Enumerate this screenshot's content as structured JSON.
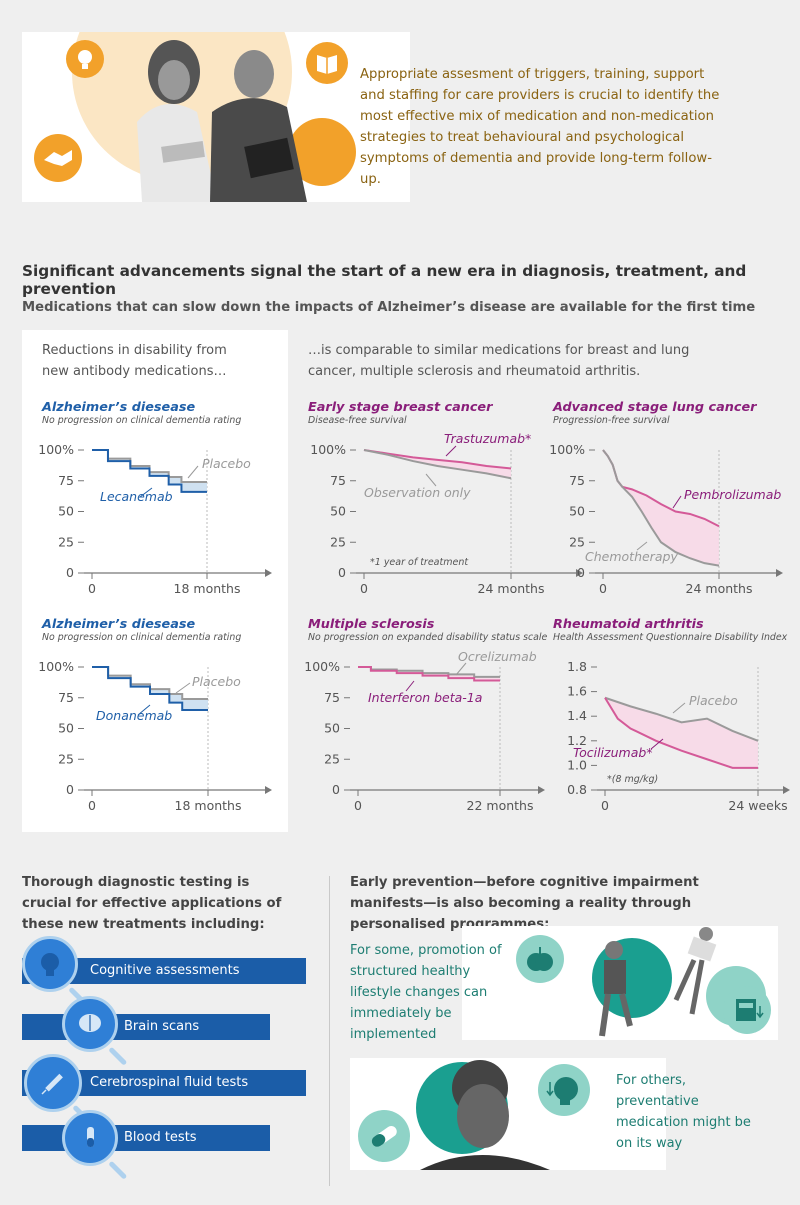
{
  "intro": {
    "text": "Appropriate assesment of triggers, training, support and staffing for care providers is crucial to identify the most effective mix of medication and non-medication strategies to treat behavioural and psychological symptoms of dementia and provide long-term follow-up."
  },
  "heading": "Significant advancements signal the start of a new era in diagnosis, treatment, and prevention",
  "subheading": "Medications that can slow down the impacts of  Alzheimer’s disease are available for the first time",
  "left_lead": "Reductions in disability from new antibody medications…",
  "right_lead": "…is comparable to similar medications for breast and lung cancer, multiple sclerosis and rheumatoid arthritis.",
  "colors": {
    "blue": "#1f5fa8",
    "purple": "#8a1e7a",
    "pink": "#d45a98",
    "pink_fill": "#f8d7e6",
    "blue_fill": "#c7dcee",
    "grey": "#9a9a9a",
    "orange": "#f2a12a",
    "teal": "#1d7d72",
    "teal_light": "#8fd3c7"
  },
  "chart_data": [
    {
      "type": "line",
      "title": "Alzheimer’s diesease",
      "subtitle": "No progression on clinical dementia rating",
      "y_ticks": [
        "100%",
        "75",
        "50",
        "25",
        "0"
      ],
      "x_ticks": [
        "0",
        "18 months"
      ],
      "xlim": [
        0,
        18
      ],
      "ylim": [
        0,
        100
      ],
      "series": [
        {
          "name": "Placebo",
          "x": [
            0,
            2.5,
            2.5,
            6,
            6,
            9,
            9,
            12,
            12,
            14,
            14,
            18
          ],
          "y": [
            100,
            100,
            93,
            93,
            87,
            87,
            82,
            82,
            78,
            78,
            74,
            74
          ]
        },
        {
          "name": "Lecanemab",
          "x": [
            0,
            2.5,
            2.5,
            6,
            6,
            9,
            9,
            12,
            12,
            14,
            14,
            18
          ],
          "y": [
            100,
            100,
            91,
            91,
            85,
            85,
            79,
            79,
            72,
            72,
            66,
            66
          ]
        }
      ]
    },
    {
      "type": "line",
      "title": "Early stage breast cancer",
      "subtitle": "Disease-free survival",
      "note": "*1 year of treatment",
      "y_ticks": [
        "100%",
        "75",
        "50",
        "25",
        "0"
      ],
      "x_ticks": [
        "0",
        "24 months"
      ],
      "xlim": [
        0,
        24
      ],
      "ylim": [
        0,
        100
      ],
      "series": [
        {
          "name": "Trastuzumab*",
          "x": [
            0,
            4,
            8,
            12,
            16,
            20,
            24
          ],
          "y": [
            100,
            97,
            94,
            92,
            90,
            87,
            85
          ]
        },
        {
          "name": "Observation only",
          "x": [
            0,
            4,
            8,
            12,
            16,
            20,
            24
          ],
          "y": [
            100,
            96,
            91,
            87,
            84,
            81,
            77
          ]
        }
      ]
    },
    {
      "type": "line",
      "title": "Advanced stage lung cancer",
      "subtitle": "Progression-free survival",
      "y_ticks": [
        "100%",
        "75",
        "50",
        "25",
        "0"
      ],
      "x_ticks": [
        "0",
        "24 months"
      ],
      "xlim": [
        0,
        24
      ],
      "ylim": [
        0,
        100
      ],
      "series": [
        {
          "name": "Pembrolizumab",
          "x": [
            0,
            1,
            2,
            3,
            4,
            6,
            9,
            12,
            15,
            18,
            21,
            24
          ],
          "y": [
            100,
            95,
            88,
            75,
            70,
            68,
            63,
            56,
            50,
            48,
            44,
            38
          ]
        },
        {
          "name": "Chemotherapy",
          "x": [
            0,
            1,
            2,
            3,
            4,
            6,
            8,
            10,
            12,
            15,
            18,
            21,
            24
          ],
          "y": [
            100,
            95,
            88,
            75,
            70,
            62,
            50,
            37,
            25,
            17,
            12,
            8,
            6
          ]
        }
      ]
    },
    {
      "type": "line",
      "title": "Alzheimer’s diesease",
      "subtitle": "No progression on clinical dementia rating",
      "y_ticks": [
        "100%",
        "75",
        "50",
        "25",
        "0"
      ],
      "x_ticks": [
        "0",
        "18 months"
      ],
      "xlim": [
        0,
        18
      ],
      "ylim": [
        0,
        100
      ],
      "series": [
        {
          "name": "Placebo",
          "x": [
            0,
            2.5,
            2.5,
            6,
            6,
            9,
            9,
            12,
            12,
            14,
            14,
            18
          ],
          "y": [
            100,
            100,
            93,
            93,
            86,
            86,
            82,
            82,
            78,
            78,
            74,
            74
          ]
        },
        {
          "name": "Donanemab",
          "x": [
            0,
            2.5,
            2.5,
            6,
            6,
            9,
            9,
            12,
            12,
            14,
            14,
            18
          ],
          "y": [
            100,
            100,
            91,
            91,
            84,
            84,
            78,
            78,
            71,
            71,
            65,
            65
          ]
        }
      ]
    },
    {
      "type": "line",
      "title": "Multiple sclerosis",
      "subtitle": "No progression on expanded disability status scale",
      "y_ticks": [
        "100%",
        "75",
        "50",
        "25",
        "0"
      ],
      "x_ticks": [
        "0",
        "22 months"
      ],
      "xlim": [
        0,
        22
      ],
      "ylim": [
        0,
        100
      ],
      "series": [
        {
          "name": "Ocrelizumab",
          "x": [
            0,
            2,
            2,
            6,
            6,
            10,
            10,
            14,
            14,
            18,
            18,
            22
          ],
          "y": [
            100,
            100,
            98,
            98,
            97,
            97,
            95,
            95,
            94,
            94,
            92,
            92
          ]
        },
        {
          "name": "Interferon beta-1a",
          "x": [
            0,
            2,
            2,
            6,
            6,
            10,
            10,
            14,
            14,
            18,
            18,
            22
          ],
          "y": [
            100,
            100,
            97,
            97,
            95,
            95,
            93,
            93,
            91,
            91,
            89,
            89
          ]
        }
      ]
    },
    {
      "type": "line",
      "title": "Rheumatoid arthritis",
      "subtitle": "Health Assessment Questionnaire Disability Index",
      "note": "*(8 mg/kg)",
      "y_ticks": [
        "1.8",
        "1.6",
        "1.4",
        "1.2",
        "1.0",
        "0.8"
      ],
      "x_ticks": [
        "0",
        "24 weeks"
      ],
      "xlim": [
        0,
        24
      ],
      "ylim": [
        0.8,
        1.8
      ],
      "series": [
        {
          "name": "Placebo",
          "x": [
            0,
            4,
            8,
            12,
            16,
            20,
            24
          ],
          "y": [
            1.55,
            1.48,
            1.42,
            1.35,
            1.38,
            1.28,
            1.2
          ]
        },
        {
          "name": "Tocilizumab*",
          "x": [
            0,
            2,
            4,
            8,
            12,
            16,
            20,
            24
          ],
          "y": [
            1.55,
            1.38,
            1.3,
            1.2,
            1.12,
            1.05,
            0.98,
            0.98
          ]
        }
      ]
    }
  ],
  "diagnostics": {
    "heading": "Thorough diagnostic testing is crucial for effective applications of these new treatments including:",
    "items": [
      {
        "label": "Cognitive assessments",
        "icon": "head-icon"
      },
      {
        "label": "Brain scans",
        "icon": "brain-icon"
      },
      {
        "label": "Cerebrospinal fluid tests",
        "icon": "syringe-icon"
      },
      {
        "label": "Blood tests",
        "icon": "test-tube-icon"
      }
    ]
  },
  "prevention": {
    "heading": "Early prevention—before cognitive impairment manifests—is also becoming a reality through personalised programmes:",
    "lifestyle_text": "For some, promotion of structured healthy lifestyle changes can immediately be implemented",
    "medication_text": "For others, preventative medication might be on its way"
  }
}
